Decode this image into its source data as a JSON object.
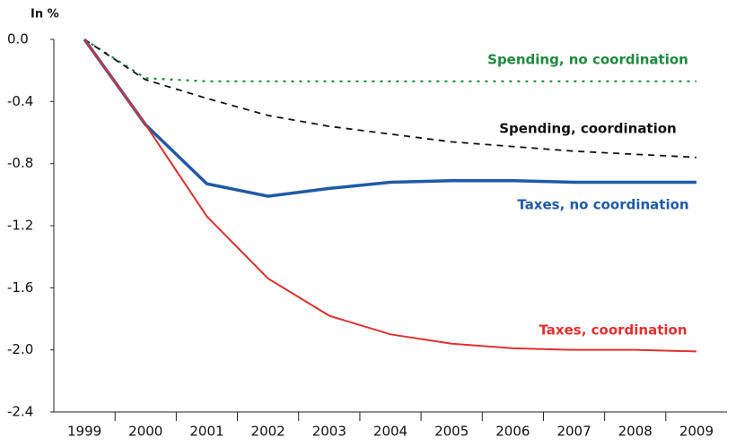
{
  "chart_data": {
    "type": "line",
    "y_label": "In %",
    "categories": [
      "1999",
      "2000",
      "2001",
      "2002",
      "2003",
      "2004",
      "2005",
      "2006",
      "2007",
      "2008",
      "2009"
    ],
    "series": [
      {
        "name": "Spending, no coordination",
        "color": "#1e8a3e",
        "style": "dotted",
        "values": [
          0,
          -0.25,
          -0.27,
          -0.27,
          -0.27,
          -0.27,
          -0.27,
          -0.27,
          -0.27,
          -0.27,
          -0.27
        ]
      },
      {
        "name": "Spending, coordination",
        "color": "#111111",
        "style": "dashed",
        "values": [
          0,
          -0.26,
          -0.38,
          -0.49,
          -0.56,
          -0.61,
          -0.66,
          -0.69,
          -0.72,
          -0.74,
          -0.76
        ]
      },
      {
        "name": "Taxes, no coordination",
        "color": "#1f5aa6",
        "style": "thick",
        "values": [
          0,
          -0.55,
          -0.93,
          -1.01,
          -0.96,
          -0.92,
          -0.91,
          -0.91,
          -0.92,
          -0.92,
          -0.92
        ]
      },
      {
        "name": "Taxes, coordination",
        "color": "#e03030",
        "style": "solid",
        "values": [
          0,
          -0.55,
          -1.14,
          -1.54,
          -1.78,
          -1.9,
          -1.96,
          -1.99,
          -2.0,
          -2.0,
          -2.01
        ]
      }
    ],
    "ylim": [
      -2.4,
      0
    ],
    "yticks": [
      {
        "value": 0,
        "label": "0.0"
      },
      {
        "value": -0.4,
        "label": "-0.4"
      },
      {
        "value": -0.8,
        "label": "-0.8"
      },
      {
        "value": -1.2,
        "label": "-1.2"
      },
      {
        "value": -1.6,
        "label": "-1.6"
      },
      {
        "value": -2.0,
        "label": "-2.0"
      },
      {
        "value": -2.4,
        "label": "-2.4"
      }
    ],
    "grid": false
  }
}
